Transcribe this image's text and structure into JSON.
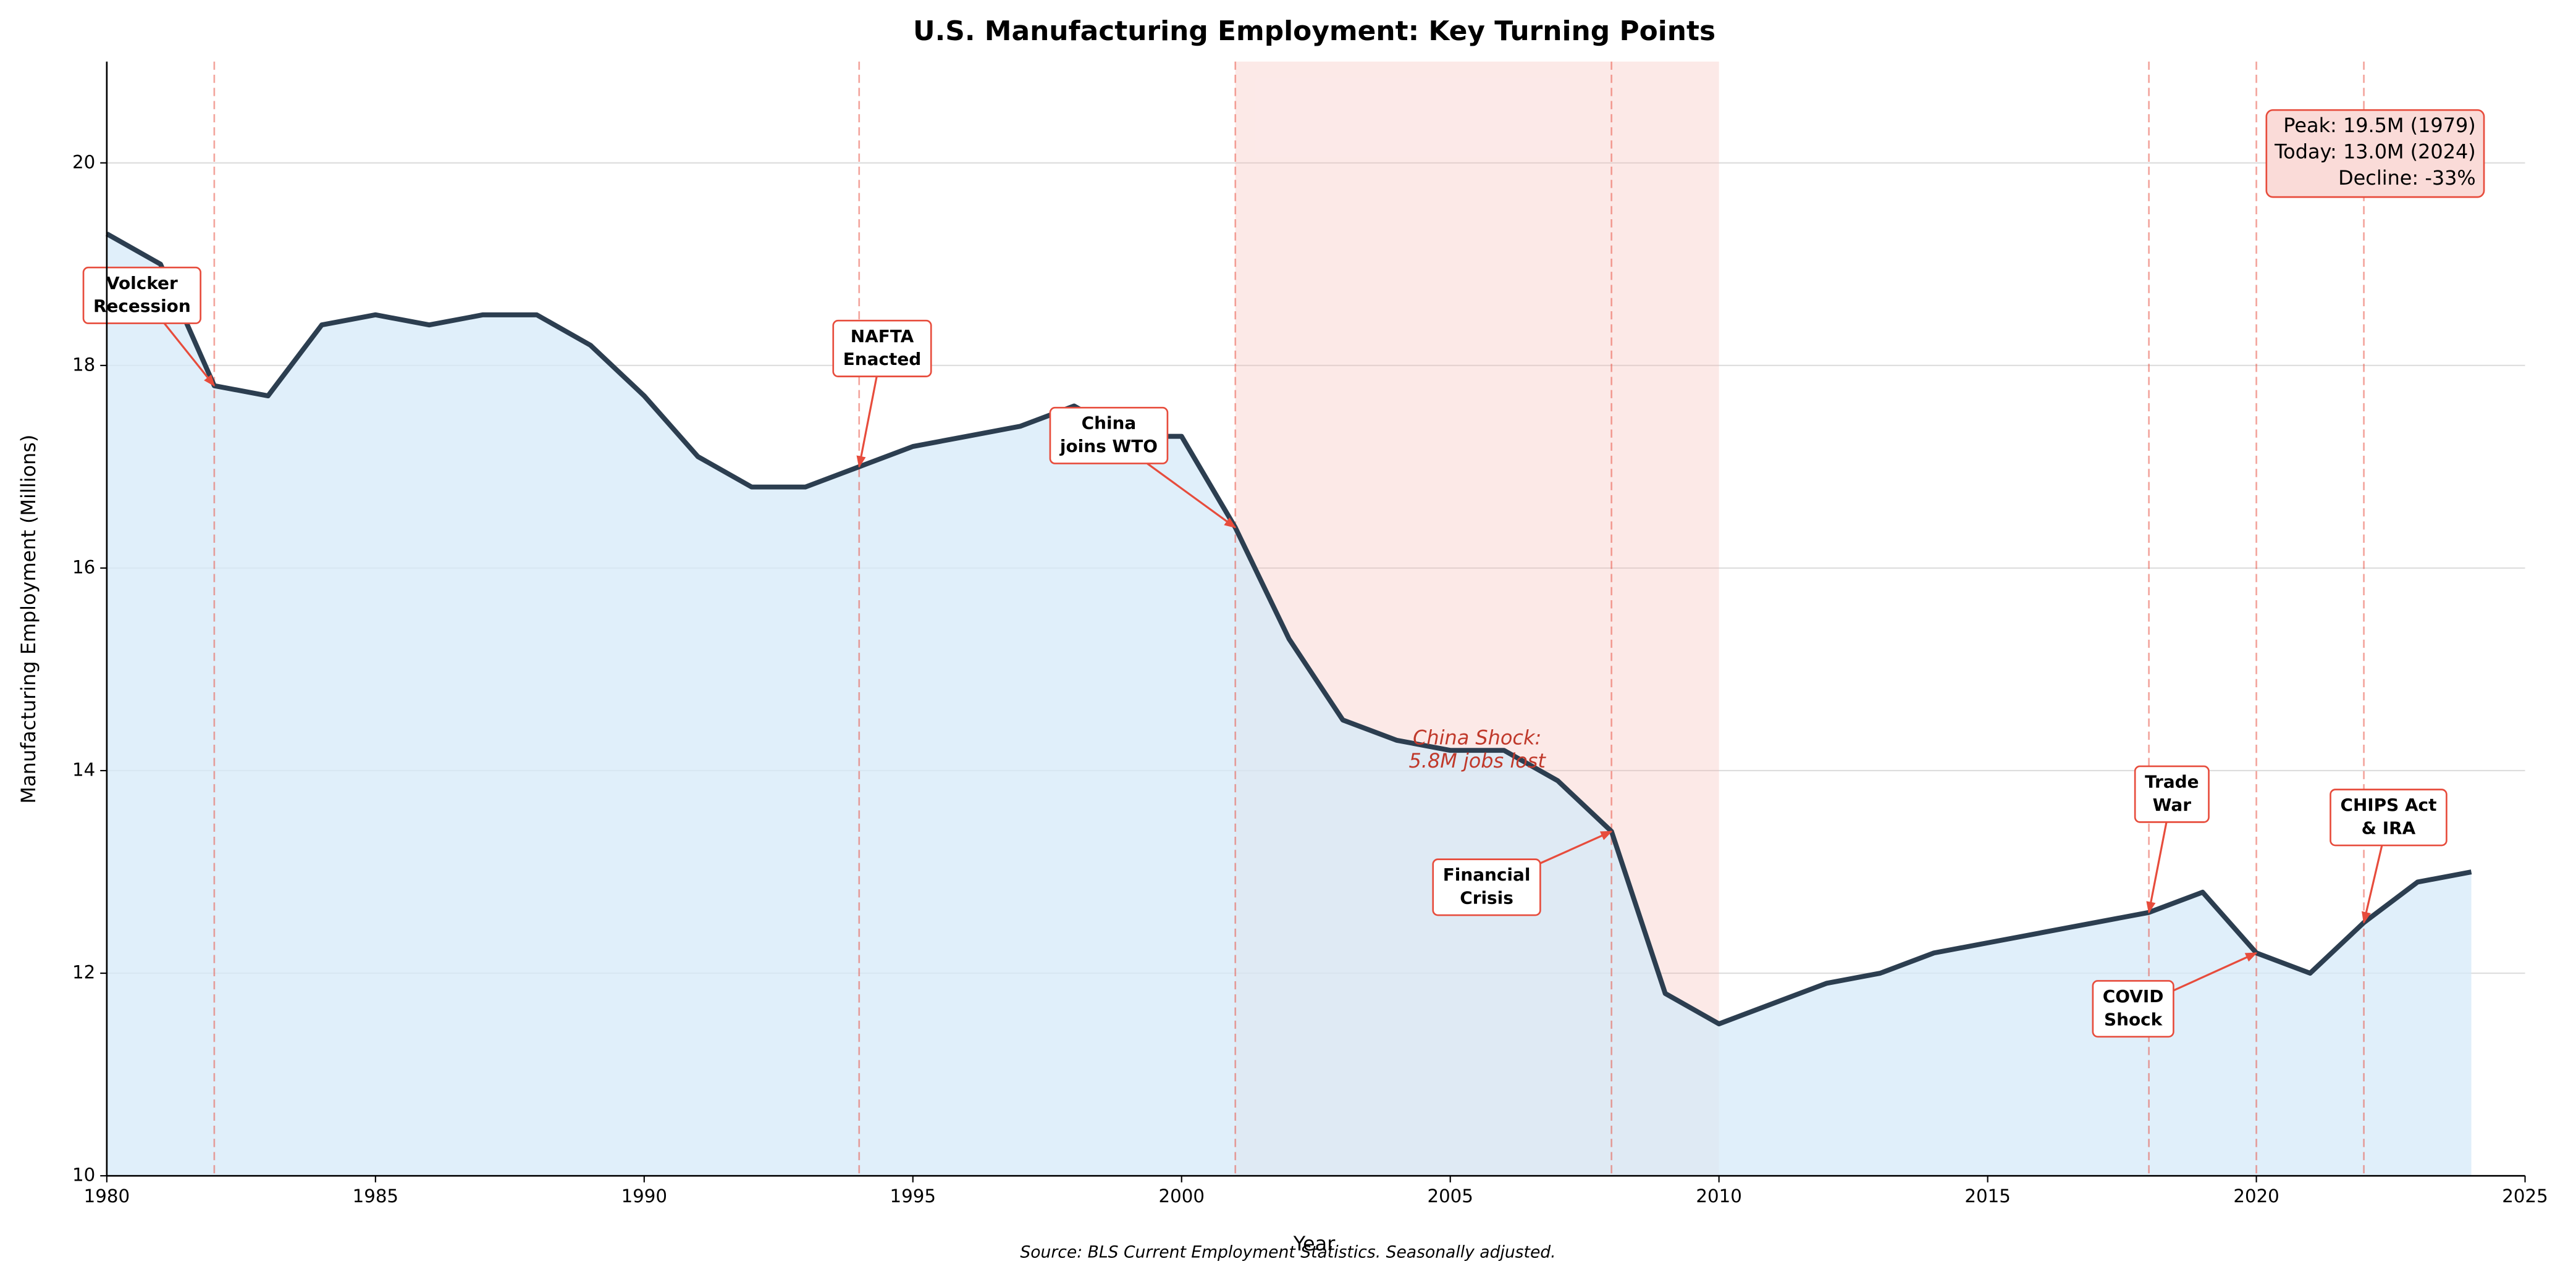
{
  "chart_data": {
    "type": "area-line",
    "title": "U.S. Manufacturing Employment: Key Turning Points",
    "x_label": "Year",
    "y_label": "Manufacturing Employment (Millions)",
    "source": "Source: BLS Current Employment Statistics. Seasonally adjusted.",
    "x": [
      1980,
      1981,
      1982,
      1983,
      1984,
      1985,
      1986,
      1987,
      1988,
      1989,
      1990,
      1991,
      1992,
      1993,
      1994,
      1995,
      1996,
      1997,
      1998,
      1999,
      2000,
      2001,
      2002,
      2003,
      2004,
      2005,
      2006,
      2007,
      2008,
      2009,
      2010,
      2011,
      2012,
      2013,
      2014,
      2015,
      2016,
      2017,
      2018,
      2019,
      2020,
      2021,
      2022,
      2023,
      2024
    ],
    "series": [
      {
        "color": "#2c3e50",
        "fill": "#d6e9f8",
        "values": [
          19.3,
          19.0,
          17.8,
          17.7,
          18.4,
          18.5,
          18.4,
          18.5,
          18.5,
          18.2,
          17.7,
          17.1,
          16.8,
          16.8,
          17.0,
          17.2,
          17.3,
          17.4,
          17.6,
          17.3,
          17.3,
          16.4,
          15.3,
          14.5,
          14.3,
          14.2,
          14.2,
          13.9,
          13.4,
          11.8,
          11.5,
          11.7,
          11.9,
          12.0,
          12.2,
          12.3,
          12.4,
          12.5,
          12.6,
          12.8,
          12.2,
          12.0,
          12.5,
          12.9,
          13.0
        ]
      }
    ],
    "xlim": [
      1980,
      2025
    ],
    "xticks": [
      1980,
      1985,
      1990,
      1995,
      2000,
      2005,
      2010,
      2015,
      2020,
      2025
    ],
    "ylim": [
      10,
      21
    ],
    "yticks": [
      10,
      12,
      14,
      16,
      18,
      20
    ],
    "grid": true,
    "span": {
      "start": 2001,
      "end": 2010,
      "color": "#f5b7b1",
      "lines": [
        "China Shock:",
        "5.8M jobs lost"
      ]
    },
    "event_color": "#e74c3c",
    "events": [
      {
        "year": 1982,
        "lines": [
          "Volcker",
          "Recession"
        ]
      },
      {
        "year": 1994,
        "lines": [
          "NAFTA",
          "Enacted"
        ]
      },
      {
        "year": 2001,
        "lines": [
          "China",
          "joins WTO"
        ]
      },
      {
        "year": 2008,
        "lines": [
          "Financial",
          "Crisis"
        ]
      },
      {
        "year": 2018,
        "lines": [
          "Trade",
          "War"
        ]
      },
      {
        "year": 2020,
        "lines": [
          "COVID",
          "Shock"
        ]
      },
      {
        "year": 2022,
        "lines": [
          "CHIPS Act",
          "& IRA"
        ]
      }
    ],
    "stats": [
      "Peak: 19.5M (1979)",
      "Today: 13.0M (2024)",
      "Decline: -33%"
    ]
  }
}
